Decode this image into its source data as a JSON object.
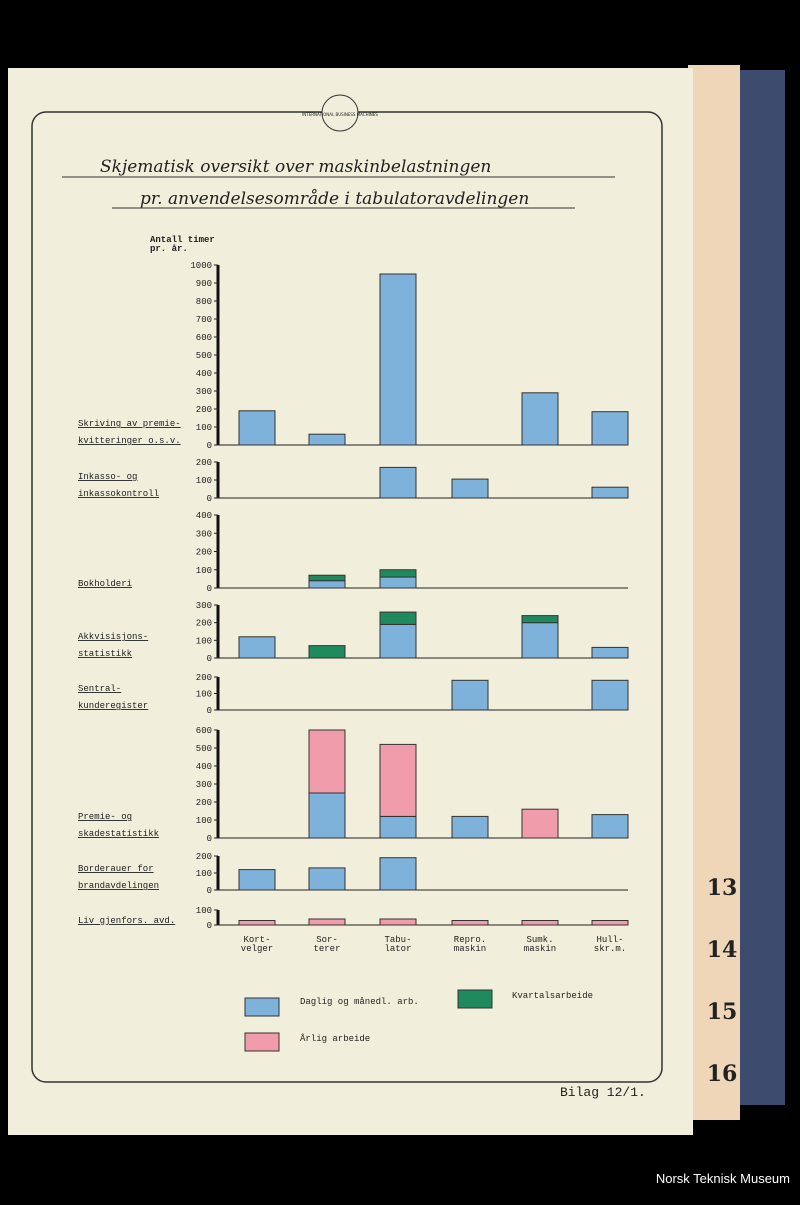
{
  "header": {
    "logo": "INTERNATIONAL BUSINESS MACHINES",
    "title": [
      "Skjematisk oversikt over maskinbelastningen",
      "pr. anvendelsesområde i tabulatoravdelingen"
    ]
  },
  "chart_data": {
    "type": "bar",
    "stacked": true,
    "y_label": [
      "Antall timer",
      "pr. år."
    ],
    "categories": [
      [
        "Kort-",
        "velger"
      ],
      [
        "Sor-",
        "terer"
      ],
      [
        "Tabu-",
        "lator"
      ],
      [
        "Repro.",
        "maskin"
      ],
      [
        "Sumk.",
        "maskin"
      ],
      [
        "Hull-",
        "skr.m."
      ]
    ],
    "series": [
      {
        "name": "Daglig og månedl. arb.",
        "color": "#7fb2da"
      },
      {
        "name": "Kvartalsarbeide",
        "color": "#1f8a5e"
      },
      {
        "name": "Årlig arbeide",
        "color": "#f09cab"
      }
    ],
    "panels": [
      {
        "label": [
          "Skriving av premie-",
          "kvitteringer o.s.v."
        ],
        "ylim": [
          0,
          1000
        ],
        "yticks": [
          0,
          100,
          200,
          300,
          400,
          500,
          600,
          700,
          800,
          900,
          1000
        ],
        "values": [
          [
            190,
            60,
            950,
            null,
            290,
            185
          ],
          [
            null,
            null,
            null,
            null,
            null,
            null
          ],
          [
            null,
            null,
            null,
            null,
            null,
            null
          ]
        ]
      },
      {
        "label": [
          "Inkasso- og",
          "inkassokontroll"
        ],
        "ylim": [
          0,
          200
        ],
        "yticks": [
          0,
          100,
          200
        ],
        "values": [
          [
            null,
            null,
            170,
            105,
            null,
            60
          ],
          [
            null,
            null,
            null,
            null,
            null,
            null
          ],
          [
            null,
            null,
            null,
            null,
            null,
            null
          ]
        ]
      },
      {
        "label": [
          "Bokholderi"
        ],
        "ylim": [
          0,
          400
        ],
        "yticks": [
          0,
          100,
          200,
          300,
          400
        ],
        "values": [
          [
            null,
            40,
            60,
            null,
            null,
            null
          ],
          [
            null,
            30,
            40,
            null,
            null,
            null
          ],
          [
            null,
            null,
            null,
            null,
            null,
            null
          ]
        ]
      },
      {
        "label": [
          "Akkvisisjons-",
          "statistikk"
        ],
        "ylim": [
          0,
          300
        ],
        "yticks": [
          0,
          100,
          200,
          300
        ],
        "values": [
          [
            120,
            null,
            190,
            null,
            200,
            60
          ],
          [
            null,
            70,
            70,
            null,
            40,
            null
          ],
          [
            null,
            null,
            null,
            null,
            null,
            null
          ]
        ]
      },
      {
        "label": [
          "Sentral-",
          "kunderegister"
        ],
        "ylim": [
          0,
          200
        ],
        "yticks": [
          0,
          100,
          200
        ],
        "values": [
          [
            null,
            null,
            null,
            180,
            null,
            180
          ],
          [
            null,
            null,
            null,
            null,
            null,
            null
          ],
          [
            null,
            null,
            null,
            null,
            null,
            null
          ]
        ]
      },
      {
        "label": [
          "Premie- og",
          "skadestatistikk"
        ],
        "ylim": [
          0,
          600
        ],
        "yticks": [
          0,
          100,
          200,
          300,
          400,
          500,
          600
        ],
        "values": [
          [
            null,
            250,
            120,
            120,
            null,
            130
          ],
          [
            null,
            null,
            null,
            null,
            null,
            null
          ],
          [
            null,
            350,
            400,
            null,
            160,
            null
          ]
        ]
      },
      {
        "label": [
          "Borderauer for",
          "brandavdelingen"
        ],
        "ylim": [
          0,
          200
        ],
        "yticks": [
          0,
          100,
          200
        ],
        "values": [
          [
            120,
            130,
            190,
            null,
            null,
            null
          ],
          [
            null,
            null,
            null,
            null,
            null,
            null
          ],
          [
            null,
            null,
            null,
            null,
            null,
            null
          ]
        ]
      },
      {
        "label": [
          "Liv gjenfors. avd."
        ],
        "ylim": [
          0,
          100
        ],
        "yticks": [
          0,
          100
        ],
        "values": [
          [
            null,
            null,
            null,
            null,
            null,
            null
          ],
          [
            null,
            null,
            null,
            null,
            null,
            null
          ],
          [
            30,
            40,
            40,
            30,
            30,
            30
          ]
        ]
      }
    ]
  },
  "footer": "Bilag 12/1.",
  "tabs": [
    "13",
    "14",
    "15",
    "16"
  ],
  "credit": "Norsk Teknisk Museum"
}
